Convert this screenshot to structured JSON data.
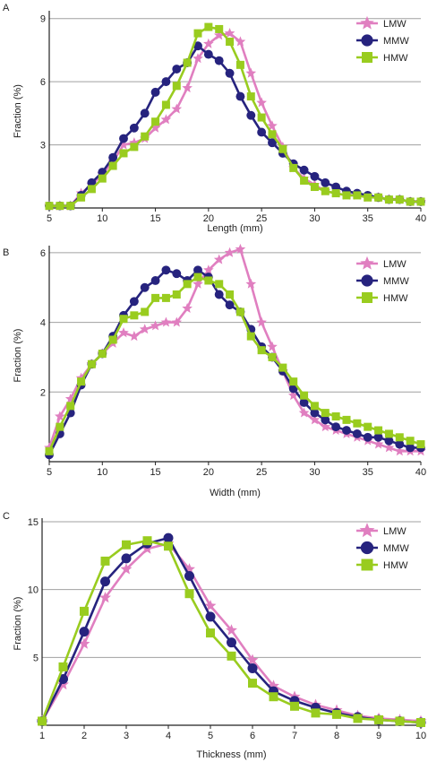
{
  "chart_data": [
    {
      "panel_label": "A",
      "type": "line",
      "xlabel": "Length (mm)",
      "ylabel": "Fraction (%)",
      "xlim": [
        5,
        40
      ],
      "ylim": [
        0,
        9.2
      ],
      "xticks": [
        5,
        10,
        15,
        20,
        25,
        30,
        35,
        40
      ],
      "yticks": [
        3,
        6,
        9
      ],
      "grid": "horizontal",
      "legend": "top-right",
      "series": [
        {
          "name": "LMW",
          "color": "#e07fc0",
          "marker": "star",
          "x": [
            5,
            6,
            7,
            8,
            9,
            10,
            11,
            12,
            13,
            14,
            15,
            16,
            17,
            18,
            19,
            20,
            21,
            22,
            23,
            24,
            25,
            26,
            27,
            28,
            29,
            30,
            31,
            32,
            33,
            34,
            35,
            36,
            37,
            38,
            39,
            40
          ],
          "y": [
            0.1,
            0.1,
            0.1,
            0.7,
            1.1,
            1.6,
            2.2,
            3.0,
            3.1,
            3.3,
            3.8,
            4.2,
            4.7,
            5.7,
            7.1,
            7.8,
            8.2,
            8.3,
            7.9,
            6.4,
            5.0,
            3.9,
            2.9,
            1.9,
            1.4,
            1.1,
            0.8,
            0.7,
            0.6,
            0.6,
            0.5,
            0.5,
            0.4,
            0.4,
            0.3,
            0.3
          ]
        },
        {
          "name": "MMW",
          "color": "#26237e",
          "marker": "circle",
          "x": [
            5,
            6,
            7,
            8,
            9,
            10,
            11,
            12,
            13,
            14,
            15,
            16,
            17,
            18,
            19,
            20,
            21,
            22,
            23,
            24,
            25,
            26,
            27,
            28,
            29,
            30,
            31,
            32,
            33,
            34,
            35,
            36,
            37,
            38,
            39,
            40
          ],
          "y": [
            0.1,
            0.1,
            0.1,
            0.6,
            1.2,
            1.7,
            2.4,
            3.3,
            3.8,
            4.5,
            5.5,
            6.0,
            6.6,
            6.9,
            7.7,
            7.3,
            7.0,
            6.4,
            5.3,
            4.4,
            3.6,
            3.1,
            2.6,
            2.1,
            1.8,
            1.5,
            1.2,
            1.0,
            0.8,
            0.7,
            0.6,
            0.5,
            0.4,
            0.4,
            0.3,
            0.3
          ]
        },
        {
          "name": "HMW",
          "color": "#99cc1f",
          "marker": "square",
          "x": [
            5,
            6,
            7,
            8,
            9,
            10,
            11,
            12,
            13,
            14,
            15,
            16,
            17,
            18,
            19,
            20,
            21,
            22,
            23,
            24,
            25,
            26,
            27,
            28,
            29,
            30,
            31,
            32,
            33,
            34,
            35,
            36,
            37,
            38,
            39,
            40
          ],
          "y": [
            0.1,
            0.1,
            0.1,
            0.5,
            0.9,
            1.4,
            2.0,
            2.6,
            2.9,
            3.4,
            4.1,
            4.9,
            5.8,
            6.9,
            8.3,
            8.6,
            8.5,
            7.9,
            6.8,
            5.3,
            4.3,
            3.5,
            2.8,
            1.9,
            1.3,
            1.0,
            0.8,
            0.7,
            0.6,
            0.6,
            0.5,
            0.5,
            0.4,
            0.4,
            0.3,
            0.3
          ]
        }
      ]
    },
    {
      "panel_label": "B",
      "type": "line",
      "xlabel": "Width (mm)",
      "ylabel": "Fraction (%)",
      "xlim": [
        5,
        40
      ],
      "ylim": [
        0,
        6.1
      ],
      "xticks": [
        5,
        10,
        15,
        20,
        25,
        30,
        35,
        40
      ],
      "yticks": [
        2,
        4,
        6
      ],
      "grid": "horizontal",
      "legend": "top-right",
      "series": [
        {
          "name": "LMW",
          "color": "#e07fc0",
          "marker": "star",
          "x": [
            5,
            6,
            7,
            8,
            9,
            10,
            11,
            12,
            13,
            14,
            15,
            16,
            17,
            18,
            19,
            20,
            21,
            22,
            23,
            24,
            25,
            26,
            27,
            28,
            29,
            30,
            31,
            32,
            33,
            34,
            35,
            36,
            37,
            38,
            39,
            40
          ],
          "y": [
            0.4,
            1.3,
            1.8,
            2.4,
            2.8,
            3.1,
            3.4,
            3.7,
            3.6,
            3.8,
            3.9,
            4.0,
            4.0,
            4.4,
            5.1,
            5.5,
            5.8,
            6.0,
            6.1,
            5.1,
            4.0,
            3.3,
            2.6,
            1.9,
            1.4,
            1.2,
            1.0,
            0.9,
            0.8,
            0.7,
            0.6,
            0.5,
            0.4,
            0.3,
            0.3,
            0.3
          ]
        },
        {
          "name": "MMW",
          "color": "#26237e",
          "marker": "circle",
          "x": [
            5,
            6,
            7,
            8,
            9,
            10,
            11,
            12,
            13,
            14,
            15,
            16,
            17,
            18,
            19,
            20,
            21,
            22,
            23,
            24,
            25,
            26,
            27,
            28,
            29,
            30,
            31,
            32,
            33,
            34,
            35,
            36,
            37,
            38,
            39,
            40
          ],
          "y": [
            0.2,
            0.8,
            1.4,
            2.2,
            2.8,
            3.1,
            3.6,
            4.2,
            4.6,
            5.0,
            5.2,
            5.5,
            5.4,
            5.2,
            5.5,
            5.3,
            4.8,
            4.5,
            4.3,
            3.8,
            3.3,
            3.0,
            2.6,
            2.1,
            1.7,
            1.4,
            1.2,
            1.0,
            0.9,
            0.8,
            0.7,
            0.7,
            0.6,
            0.5,
            0.4,
            0.4
          ]
        },
        {
          "name": "HMW",
          "color": "#99cc1f",
          "marker": "square",
          "x": [
            5,
            6,
            7,
            8,
            9,
            10,
            11,
            12,
            13,
            14,
            15,
            16,
            17,
            18,
            19,
            20,
            21,
            22,
            23,
            24,
            25,
            26,
            27,
            28,
            29,
            30,
            31,
            32,
            33,
            34,
            35,
            36,
            37,
            38,
            39,
            40
          ],
          "y": [
            0.3,
            1.0,
            1.6,
            2.3,
            2.8,
            3.1,
            3.5,
            4.1,
            4.2,
            4.3,
            4.7,
            4.7,
            4.8,
            5.1,
            5.3,
            5.2,
            5.1,
            4.8,
            4.3,
            3.6,
            3.2,
            3.0,
            2.7,
            2.3,
            1.9,
            1.6,
            1.4,
            1.3,
            1.2,
            1.1,
            1.0,
            0.9,
            0.8,
            0.7,
            0.6,
            0.5
          ]
        }
      ]
    },
    {
      "panel_label": "C",
      "type": "line",
      "xlabel": "Thickness (mm)",
      "ylabel": "Fraction (%)",
      "xlim": [
        1,
        10
      ],
      "ylim": [
        0,
        15
      ],
      "xticks": [
        1,
        2,
        3,
        4,
        5,
        6,
        7,
        8,
        9,
        10
      ],
      "yticks": [
        5,
        10,
        15
      ],
      "grid": "horizontal",
      "legend": "top-right",
      "series": [
        {
          "name": "LMW",
          "color": "#e07fc0",
          "marker": "star",
          "x": [
            1,
            1.5,
            2,
            2.5,
            3,
            3.5,
            4,
            4.5,
            5,
            5.5,
            6,
            6.5,
            7,
            7.5,
            8,
            8.5,
            9,
            9.5,
            10
          ],
          "y": [
            0.3,
            3.0,
            6.0,
            9.4,
            11.5,
            13.0,
            13.4,
            11.5,
            8.8,
            7.0,
            4.8,
            2.9,
            2.1,
            1.5,
            1.1,
            0.7,
            0.5,
            0.4,
            0.3
          ]
        },
        {
          "name": "MMW",
          "color": "#26237e",
          "marker": "circle",
          "x": [
            1,
            1.5,
            2,
            2.5,
            3,
            3.5,
            4,
            4.5,
            5,
            5.5,
            6,
            6.5,
            7,
            7.5,
            8,
            8.5,
            9,
            9.5,
            10
          ],
          "y": [
            0.3,
            3.4,
            6.9,
            10.6,
            12.3,
            13.4,
            13.8,
            11.0,
            8.0,
            6.1,
            4.2,
            2.5,
            1.8,
            1.3,
            0.9,
            0.6,
            0.4,
            0.3,
            0.2
          ]
        },
        {
          "name": "HMW",
          "color": "#99cc1f",
          "marker": "square",
          "x": [
            1,
            1.5,
            2,
            2.5,
            3,
            3.5,
            4,
            4.5,
            5,
            5.5,
            6,
            6.5,
            7,
            7.5,
            8,
            8.5,
            9,
            9.5,
            10
          ],
          "y": [
            0.3,
            4.3,
            8.4,
            12.1,
            13.3,
            13.6,
            13.2,
            9.7,
            6.8,
            5.1,
            3.1,
            2.1,
            1.4,
            0.9,
            0.8,
            0.5,
            0.4,
            0.3,
            0.2
          ]
        }
      ]
    }
  ]
}
